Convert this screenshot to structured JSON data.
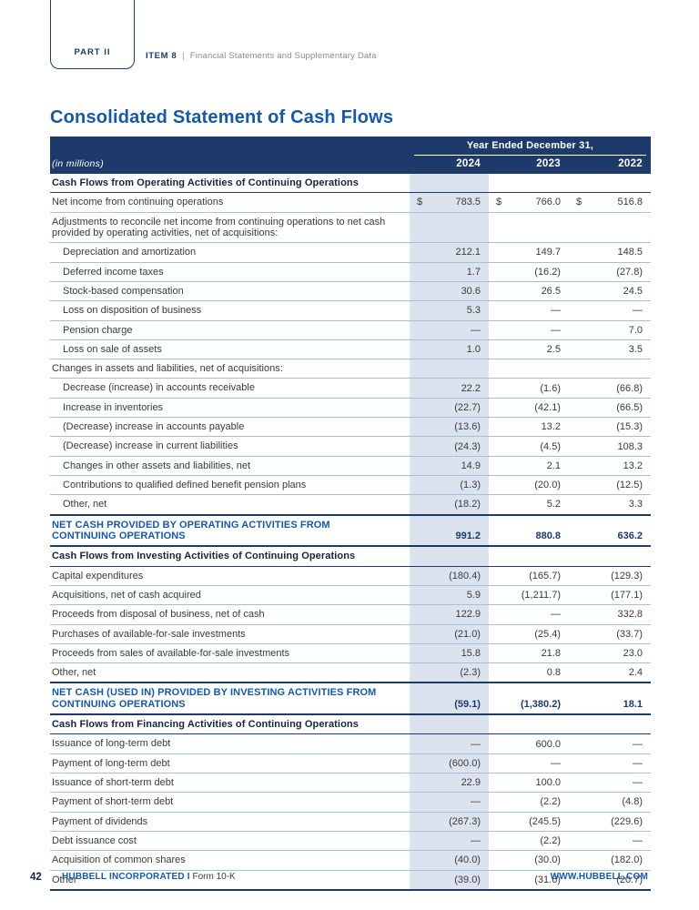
{
  "page": {
    "part_label": "PART II",
    "item_label": "ITEM 8",
    "item_separator": "|",
    "item_description": "Financial Statements and Supplementary Data",
    "title": "Consolidated Statement of Cash Flows"
  },
  "colors": {
    "navy": "#1E3A6B",
    "accent_blue": "#1659A5",
    "column_highlight": "#DCE3EE",
    "row_separator": "#A7BFD8"
  },
  "table": {
    "period_header": "Year Ended December 31,",
    "unit_label": "(in millions)",
    "currency_symbol": "$",
    "years": [
      "2024",
      "2023",
      "2022"
    ],
    "rows": [
      {
        "type": "section",
        "label": "Cash Flows from Operating Activities of Continuing Operations",
        "values": null
      },
      {
        "type": "item",
        "label": "Net income from continuing operations",
        "currency": true,
        "values": [
          "783.5",
          "766.0",
          "516.8"
        ]
      },
      {
        "type": "group",
        "label": "Adjustments to reconcile net income from continuing operations to net cash provided by operating activities, net of acquisitions:",
        "values": null
      },
      {
        "type": "indent",
        "label": "Depreciation and amortization",
        "values": [
          "212.1",
          "149.7",
          "148.5"
        ]
      },
      {
        "type": "indent",
        "label": "Deferred income taxes",
        "values": [
          "1.7",
          "(16.2)",
          "(27.8)"
        ]
      },
      {
        "type": "indent",
        "label": "Stock-based compensation",
        "values": [
          "30.6",
          "26.5",
          "24.5"
        ]
      },
      {
        "type": "indent",
        "label": "Loss on disposition of business",
        "values": [
          "5.3",
          "—",
          "—"
        ]
      },
      {
        "type": "indent",
        "label": "Pension charge",
        "values": [
          "—",
          "—",
          "7.0"
        ]
      },
      {
        "type": "indent",
        "label": "Loss on sale of assets",
        "values": [
          "1.0",
          "2.5",
          "3.5"
        ]
      },
      {
        "type": "group",
        "label": "Changes in assets and liabilities, net of acquisitions:",
        "values": null
      },
      {
        "type": "indent",
        "label": "Decrease (increase) in accounts receivable",
        "values": [
          "22.2",
          "(1.6)",
          "(66.8)"
        ]
      },
      {
        "type": "indent",
        "label": "Increase in inventories",
        "values": [
          "(22.7)",
          "(42.1)",
          "(66.5)"
        ]
      },
      {
        "type": "indent",
        "label": "(Decrease) increase in accounts payable",
        "values": [
          "(13.6)",
          "13.2",
          "(15.3)"
        ]
      },
      {
        "type": "indent",
        "label": "(Decrease) increase in current liabilities",
        "values": [
          "(24.3)",
          "(4.5)",
          "108.3"
        ]
      },
      {
        "type": "indent",
        "label": "Changes in other assets and liabilities, net",
        "values": [
          "14.9",
          "2.1",
          "13.2"
        ]
      },
      {
        "type": "indent",
        "label": "Contributions to qualified defined benefit pension plans",
        "values": [
          "(1.3)",
          "(20.0)",
          "(12.5)"
        ]
      },
      {
        "type": "indent",
        "label": "Other, net",
        "values": [
          "(18.2)",
          "5.2",
          "3.3"
        ]
      },
      {
        "type": "total",
        "label": "NET CASH PROVIDED BY OPERATING ACTIVITIES FROM CONTINUING OPERATIONS",
        "values": [
          "991.2",
          "880.8",
          "636.2"
        ]
      },
      {
        "type": "section",
        "label": "Cash Flows from Investing Activities of Continuing Operations",
        "values": null
      },
      {
        "type": "item",
        "label": "Capital expenditures",
        "values": [
          "(180.4)",
          "(165.7)",
          "(129.3)"
        ]
      },
      {
        "type": "item",
        "label": "Acquisitions, net of cash acquired",
        "values": [
          "5.9",
          "(1,211.7)",
          "(177.1)"
        ]
      },
      {
        "type": "item",
        "label": "Proceeds from disposal of business, net of cash",
        "values": [
          "122.9",
          "—",
          "332.8"
        ]
      },
      {
        "type": "item",
        "label": "Purchases of available-for-sale investments",
        "values": [
          "(21.0)",
          "(25.4)",
          "(33.7)"
        ]
      },
      {
        "type": "item",
        "label": "Proceeds from sales of available-for-sale investments",
        "values": [
          "15.8",
          "21.8",
          "23.0"
        ]
      },
      {
        "type": "item",
        "label": "Other, net",
        "values": [
          "(2.3)",
          "0.8",
          "2.4"
        ]
      },
      {
        "type": "total",
        "label": "NET CASH (USED IN) PROVIDED BY INVESTING ACTIVITIES FROM CONTINUING OPERATIONS",
        "values": [
          "(59.1)",
          "(1,380.2)",
          "18.1"
        ]
      },
      {
        "type": "section",
        "label": "Cash Flows from Financing Activities of Continuing Operations",
        "values": null
      },
      {
        "type": "item",
        "label": "Issuance of long-term debt",
        "values": [
          "—",
          "600.0",
          "—"
        ]
      },
      {
        "type": "item",
        "label": "Payment of long-term debt",
        "values": [
          "(600.0)",
          "—",
          "—"
        ]
      },
      {
        "type": "item",
        "label": "Issuance of short-term debt",
        "values": [
          "22.9",
          "100.0",
          "—"
        ]
      },
      {
        "type": "item",
        "label": "Payment of short-term debt",
        "values": [
          "—",
          "(2.2)",
          "(4.8)"
        ]
      },
      {
        "type": "item",
        "label": "Payment of dividends",
        "values": [
          "(267.3)",
          "(245.5)",
          "(229.6)"
        ]
      },
      {
        "type": "item",
        "label": "Debt issuance cost",
        "values": [
          "—",
          "(2.2)",
          "—"
        ]
      },
      {
        "type": "item",
        "label": "Acquisition of common shares",
        "values": [
          "(40.0)",
          "(30.0)",
          "(182.0)"
        ]
      },
      {
        "type": "item",
        "label": "Other",
        "values": [
          "(39.0)",
          "(31.6)",
          "(20.7)"
        ]
      }
    ]
  },
  "footer": {
    "page_number": "42",
    "company": "HUBBELL INCORPORATED I",
    "form": "Form 10-K",
    "website": "WWW.HUBBELL.COM"
  }
}
